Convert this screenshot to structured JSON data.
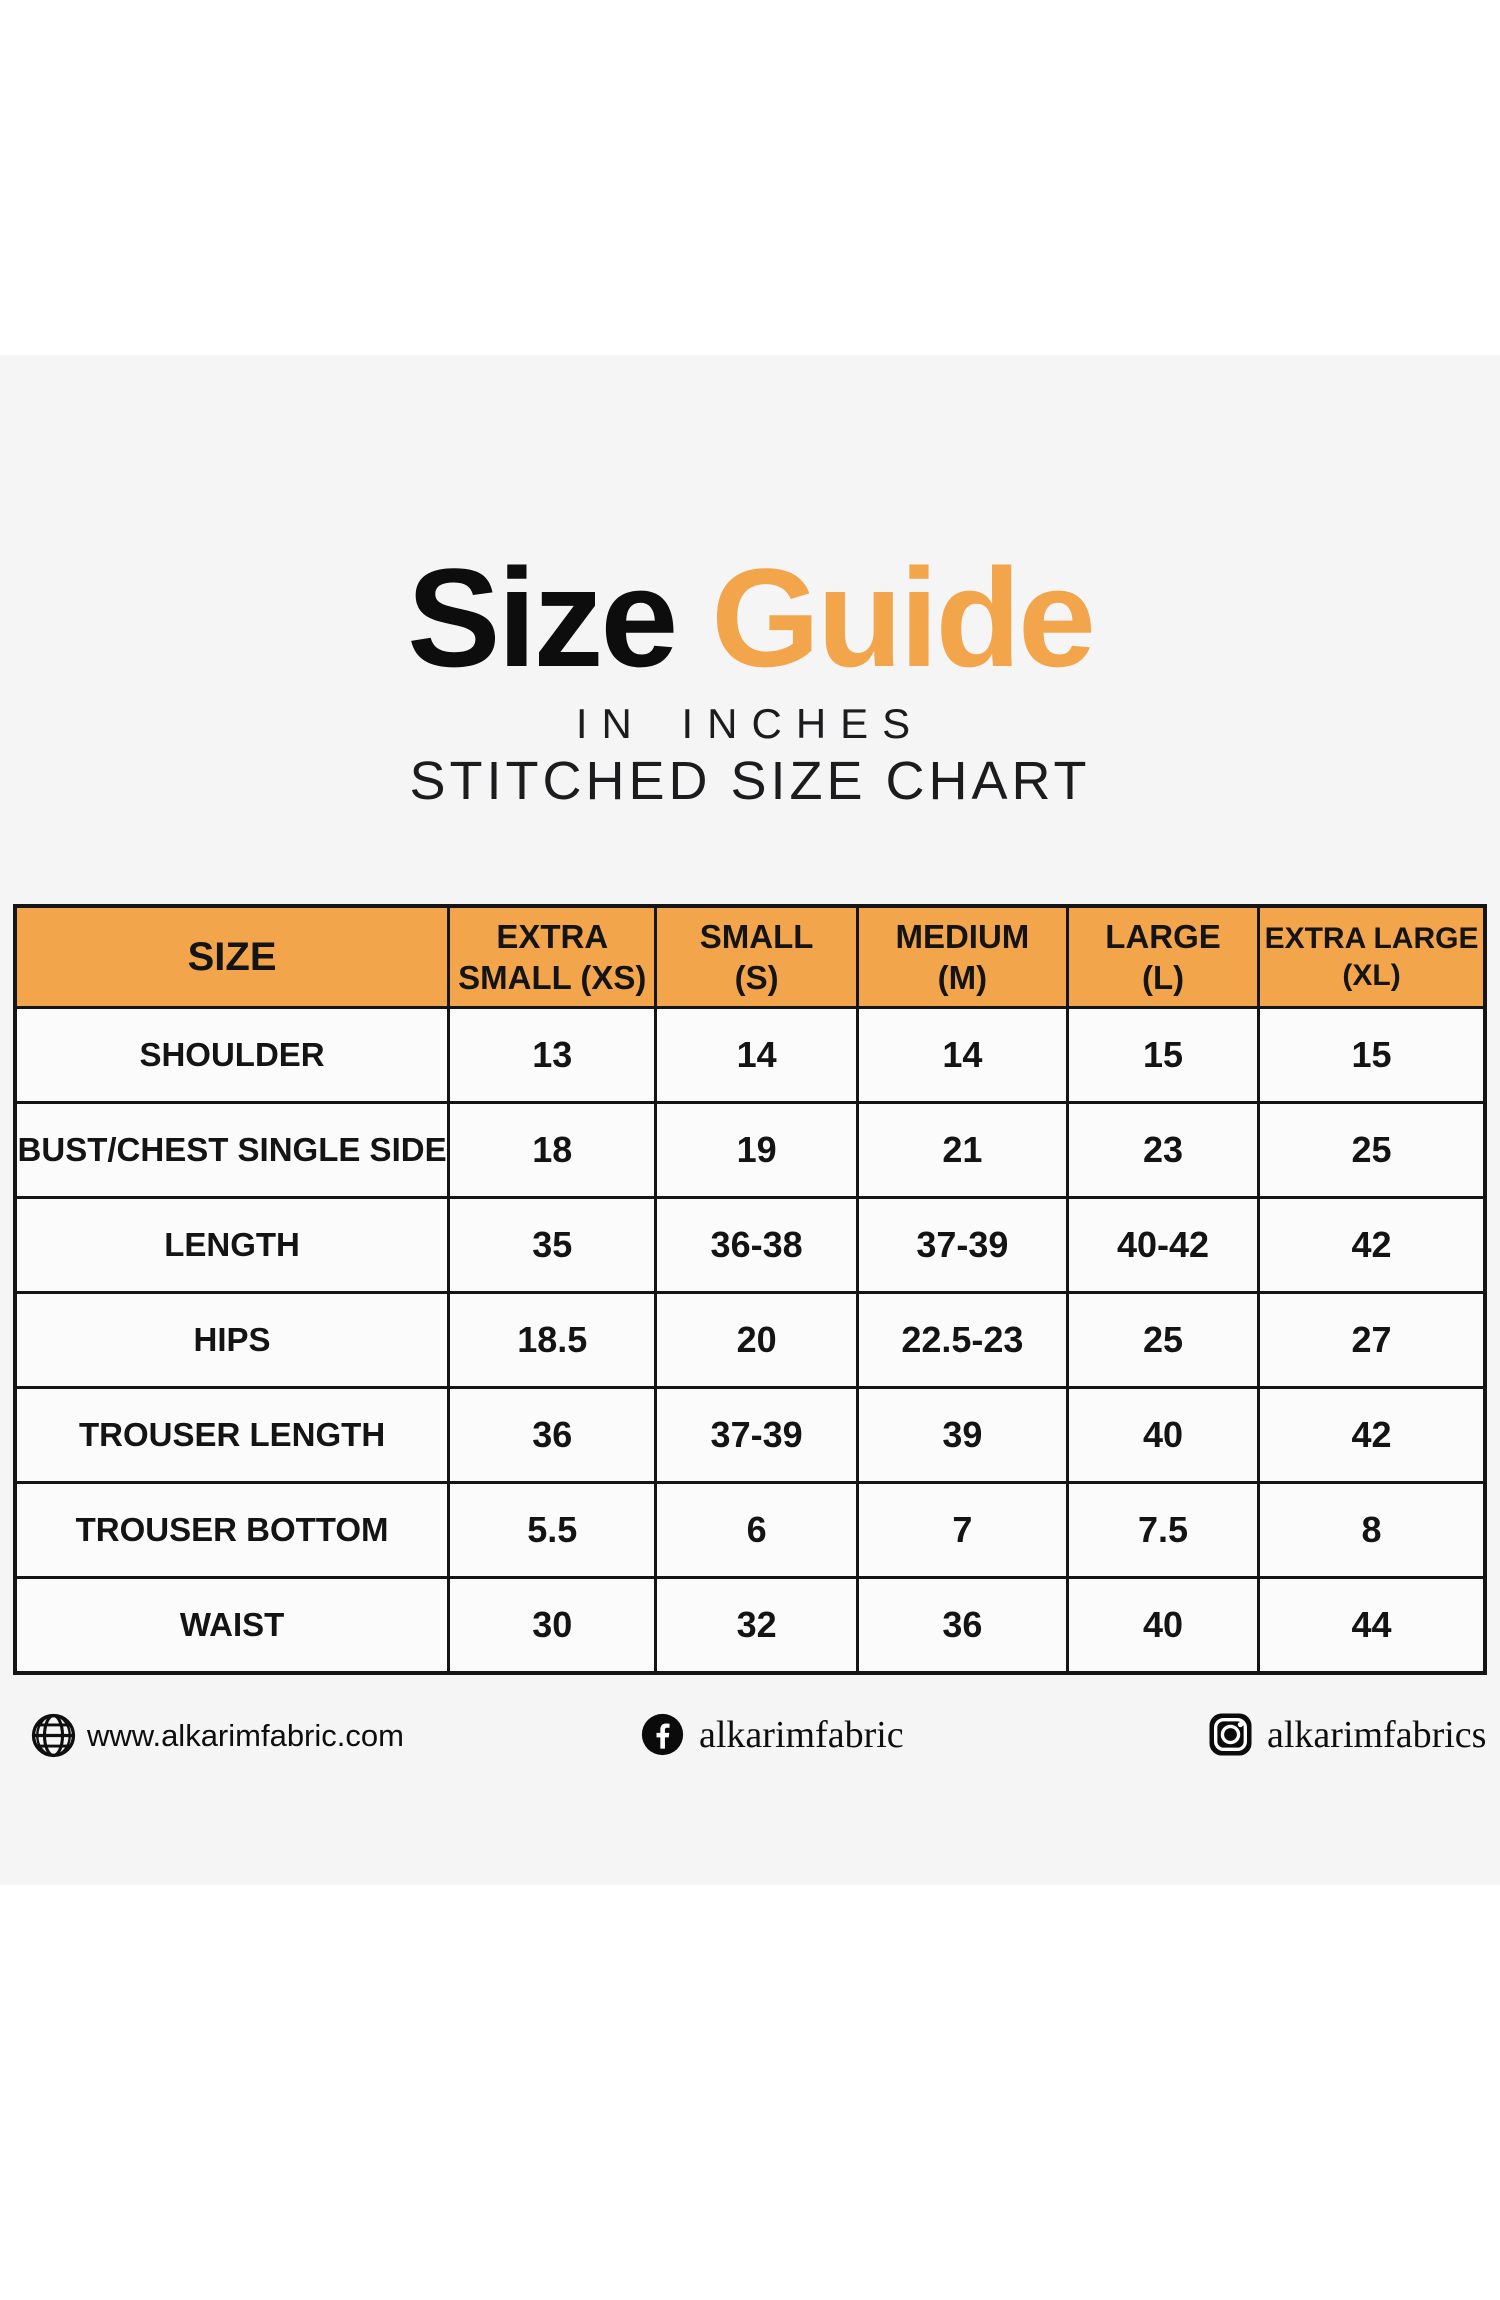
{
  "colors": {
    "accent_orange": "#F3A54C",
    "band_gray": "#f5f5f6",
    "text_black": "#141414"
  },
  "header": {
    "title_black": "Size",
    "title_orange": "Guide",
    "subtitle_line1": "IN INCHES",
    "subtitle_line2": "STITCHED SIZE CHART"
  },
  "table": {
    "headers": [
      {
        "id": "size",
        "line1": "SIZE",
        "line2": ""
      },
      {
        "id": "xs",
        "line1": "EXTRA",
        "line2": "SMALL (XS)"
      },
      {
        "id": "s",
        "line1": "SMALL",
        "line2": "(S)"
      },
      {
        "id": "m",
        "line1": "MEDIUM",
        "line2": "(M)"
      },
      {
        "id": "l",
        "line1": "LARGE",
        "line2": "(L)"
      },
      {
        "id": "xl",
        "line1": "EXTRA LARGE",
        "line2": "(XL)"
      }
    ],
    "rows": [
      {
        "label": "SHOULDER",
        "values": [
          "13",
          "14",
          "14",
          "15",
          "15"
        ]
      },
      {
        "label": "BUST/CHEST SINGLE SIDE",
        "values": [
          "18",
          "19",
          "21",
          "23",
          "25"
        ]
      },
      {
        "label": "LENGTH",
        "values": [
          "35",
          "36-38",
          "37-39",
          "40-42",
          "42"
        ]
      },
      {
        "label": "HIPS",
        "values": [
          "18.5",
          "20",
          "22.5-23",
          "25",
          "27"
        ]
      },
      {
        "label": "TROUSER LENGTH",
        "values": [
          "36",
          "37-39",
          "39",
          "40",
          "42"
        ]
      },
      {
        "label": "TROUSER BOTTOM",
        "values": [
          "5.5",
          "6",
          "7",
          "7.5",
          "8"
        ]
      },
      {
        "label": "WAIST",
        "values": [
          "30",
          "32",
          "36",
          "40",
          "44"
        ]
      }
    ]
  },
  "footer": {
    "website": {
      "icon": "globe-icon",
      "label": "www.alkarimfabric.com"
    },
    "facebook": {
      "icon": "facebook-icon",
      "label": "alkarimfabric"
    },
    "instagram": {
      "icon": "instagram-icon",
      "label": "alkarimfabrics"
    }
  }
}
